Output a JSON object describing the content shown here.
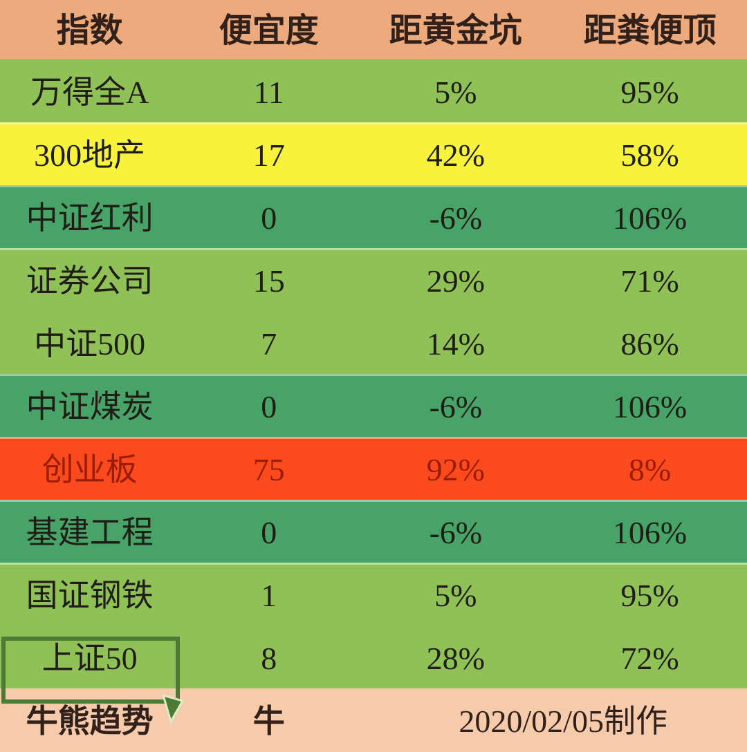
{
  "chart_data": {
    "type": "table",
    "columns": [
      "指数",
      "便宜度",
      "距黄金坑",
      "距粪便顶"
    ],
    "rows": [
      {
        "index": "万得全A",
        "cheapness": "11",
        "from_golden_pit": "5%",
        "from_dung_top": "95%",
        "color": "light-green",
        "selected": false
      },
      {
        "index": "300地产",
        "cheapness": "17",
        "from_golden_pit": "42%",
        "from_dung_top": "58%",
        "color": "yellow",
        "selected": false
      },
      {
        "index": "中证红利",
        "cheapness": "0",
        "from_golden_pit": "-6%",
        "from_dung_top": "106%",
        "color": "dark-green",
        "selected": false
      },
      {
        "index": "证券公司",
        "cheapness": "15",
        "from_golden_pit": "29%",
        "from_dung_top": "71%",
        "color": "light-green",
        "selected": false
      },
      {
        "index": "中证500",
        "cheapness": "7",
        "from_golden_pit": "14%",
        "from_dung_top": "86%",
        "color": "light-green",
        "selected": false
      },
      {
        "index": "中证煤炭",
        "cheapness": "0",
        "from_golden_pit": "-6%",
        "from_dung_top": "106%",
        "color": "dark-green",
        "selected": false
      },
      {
        "index": "创业板",
        "cheapness": "75",
        "from_golden_pit": "92%",
        "from_dung_top": "8%",
        "color": "red",
        "selected": false
      },
      {
        "index": "基建工程",
        "cheapness": "0",
        "from_golden_pit": "-6%",
        "from_dung_top": "106%",
        "color": "dark-green",
        "selected": false
      },
      {
        "index": "国证钢铁",
        "cheapness": "1",
        "from_golden_pit": "5%",
        "from_dung_top": "95%",
        "color": "light-green",
        "selected": false
      },
      {
        "index": "上证50",
        "cheapness": "8",
        "from_golden_pit": "28%",
        "from_dung_top": "72%",
        "color": "light-green",
        "selected": true
      }
    ],
    "footer": {
      "label": "牛熊趋势",
      "trend": "牛",
      "date_note": "2020/02/05制作"
    }
  },
  "palette": {
    "header-bg": "#ecaa7d",
    "footer-bg": "#f5cbab",
    "light-green": "#8fc156",
    "yellow": "#f7f23c",
    "dark-green": "#47a368",
    "red": "#fb4a1e",
    "red-text": "#9a1c02",
    "body-text": "#1f1d15",
    "header-text": "#32211a",
    "selection-border": "#4d7a35"
  }
}
